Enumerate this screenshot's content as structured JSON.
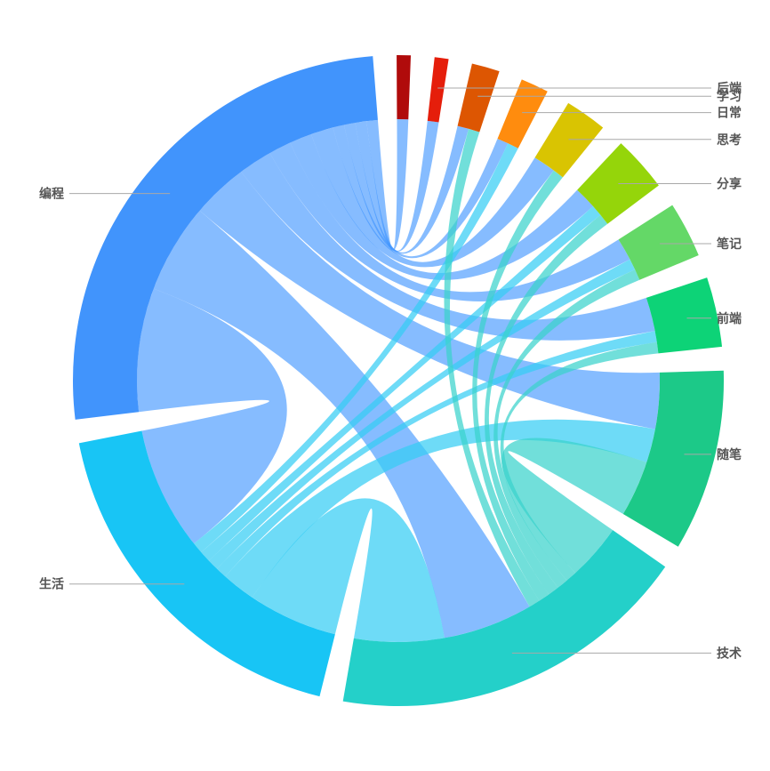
{
  "chart_data": {
    "type": "chord",
    "nodes": [
      {
        "name": "编程",
        "color": "#4194fc"
      },
      {
        "name": "生活",
        "color": "#18c5f5"
      },
      {
        "name": "技术",
        "color": "#24d0c9"
      },
      {
        "name": "随笔",
        "color": "#1cc988"
      },
      {
        "name": "前端",
        "color": "#0dd377"
      },
      {
        "name": "笔记",
        "color": "#64d867"
      },
      {
        "name": "分享",
        "color": "#95d50a"
      },
      {
        "name": "思考",
        "color": "#d9c402"
      },
      {
        "name": "日常",
        "color": "#ff8c0e"
      },
      {
        "name": "学习",
        "color": "#dd5602"
      },
      {
        "name": "后端",
        "color": "#e51e0b"
      },
      {
        "name": "",
        "color": "#b00b0b"
      }
    ],
    "links": [
      {
        "source": "编程",
        "target": "生活",
        "value": 11
      },
      {
        "source": "编程",
        "target": "技术",
        "value": 8
      },
      {
        "source": "编程",
        "target": "随笔",
        "value": 5
      },
      {
        "source": "编程",
        "target": "前端",
        "value": 3
      },
      {
        "source": "编程",
        "target": "笔记",
        "value": 2
      },
      {
        "source": "编程",
        "target": "分享",
        "value": 2
      },
      {
        "source": "编程",
        "target": "思考",
        "value": 2
      },
      {
        "source": "编程",
        "target": "日常",
        "value": 1
      },
      {
        "source": "编程",
        "target": "学习",
        "value": 1
      },
      {
        "source": "编程",
        "target": "后端",
        "value": 1
      },
      {
        "source": "编程",
        "target": "",
        "value": 1
      },
      {
        "source": "生活",
        "target": "技术",
        "value": 8
      },
      {
        "source": "生活",
        "target": "随笔",
        "value": 3
      },
      {
        "source": "生活",
        "target": "前端",
        "value": 1
      },
      {
        "source": "生活",
        "target": "笔记",
        "value": 1
      },
      {
        "source": "生活",
        "target": "分享",
        "value": 1
      },
      {
        "source": "生活",
        "target": "日常",
        "value": 1
      },
      {
        "source": "技术",
        "target": "随笔",
        "value": 5
      },
      {
        "source": "技术",
        "target": "前端",
        "value": 1
      },
      {
        "source": "技术",
        "target": "笔记",
        "value": 1
      },
      {
        "source": "技术",
        "target": "分享",
        "value": 1
      },
      {
        "source": "技术",
        "target": "思考",
        "value": 1
      },
      {
        "source": "技术",
        "target": "学习",
        "value": 1
      }
    ],
    "labels": [
      "编程",
      "生活",
      "技术",
      "随笔",
      "前端",
      "笔记",
      "分享",
      "思考",
      "日常",
      "学习",
      "后端"
    ],
    "legend": "none"
  }
}
